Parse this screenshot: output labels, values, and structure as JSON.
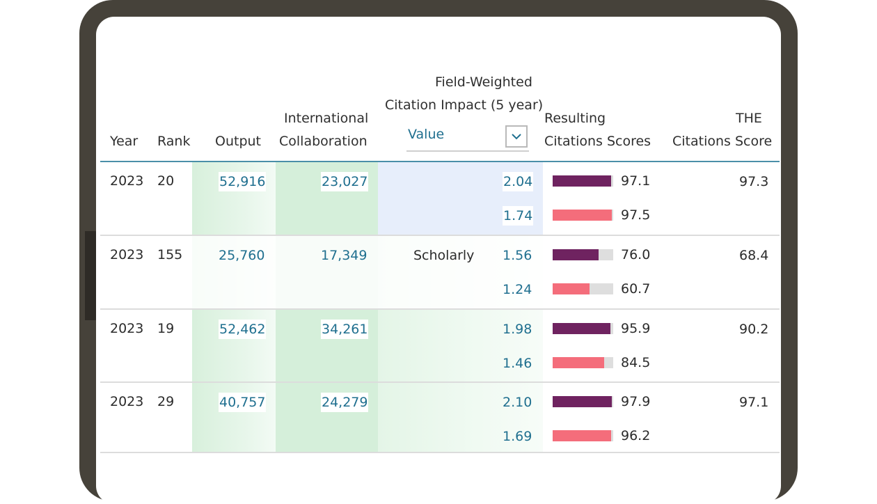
{
  "columns": {
    "year": "Year",
    "rank": "Rank",
    "output": "Output",
    "intl_line1": "International",
    "intl_line2": "Collaboration",
    "fwci_line1": "Field-Weighted",
    "fwci_line2": "Citation Impact (5 year)",
    "fwci_select": "Value",
    "resulting_line1": "Resulting",
    "resulting_line2": "Citations Scores",
    "the_line1": "THE",
    "the_line2": "Citations Score"
  },
  "rows": [
    {
      "year": "2023",
      "rank": "20",
      "output": "52,916",
      "intl": "23,027",
      "label": "",
      "fwci_a": "2.04",
      "fwci_b": "1.74",
      "score_a": "97.1",
      "score_b": "97.5",
      "score_a_value": 97.1,
      "score_b_value": 97.5,
      "the": "97.3"
    },
    {
      "year": "2023",
      "rank": "155",
      "output": "25,760",
      "intl": "17,349",
      "label": "Scholarly",
      "fwci_a": "1.56",
      "fwci_b": "1.24",
      "score_a": "76.0",
      "score_b": "60.7",
      "score_a_value": 76.0,
      "score_b_value": 60.7,
      "the": "68.4"
    },
    {
      "year": "2023",
      "rank": "19",
      "output": "52,462",
      "intl": "34,261",
      "label": "",
      "fwci_a": "1.98",
      "fwci_b": "1.46",
      "score_a": "95.9",
      "score_b": "84.5",
      "score_a_value": 95.9,
      "score_b_value": 84.5,
      "the": "90.2"
    },
    {
      "year": "2023",
      "rank": "29",
      "output": "40,757",
      "intl": "24,279",
      "label": "",
      "fwci_a": "2.10",
      "fwci_b": "1.69",
      "score_a": "97.9",
      "score_b": "96.2",
      "score_a_value": 97.9,
      "score_b_value": 96.2,
      "the": "97.1"
    }
  ],
  "colors": {
    "bar_primary": "#6f2360",
    "bar_secondary": "#f46d7b",
    "bar_track": "#dedede",
    "link": "#1f6f8f",
    "green_shade": "#dff3e3",
    "blue_shade": "#e8eefb",
    "frame": "#46423a"
  }
}
